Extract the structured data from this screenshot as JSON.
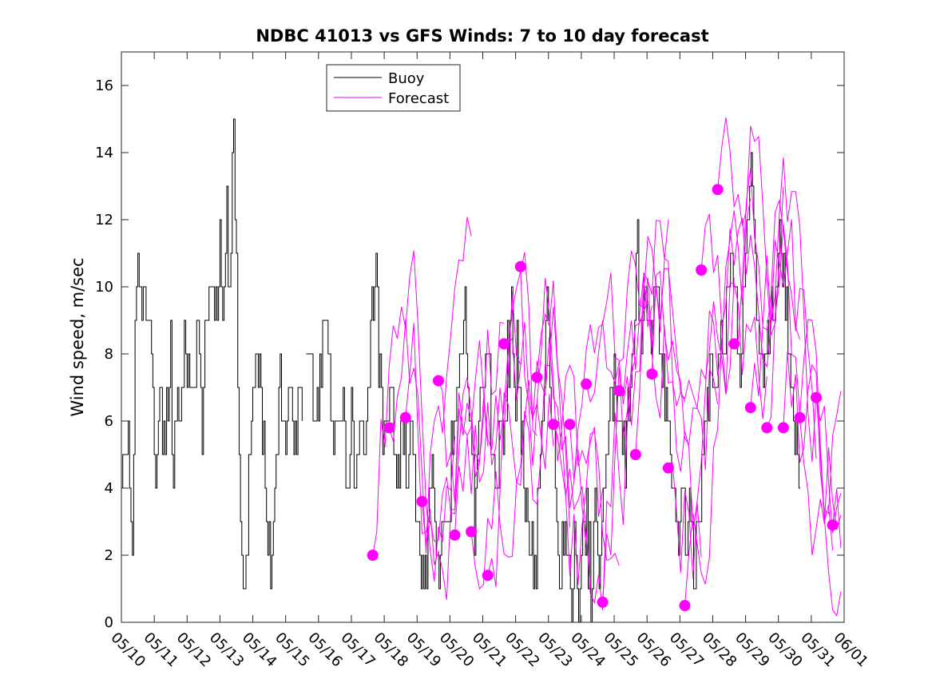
{
  "chart_data": {
    "type": "line",
    "title": "NDBC 41013 vs GFS Winds: 7 to 10 day forecast",
    "xlabel": "",
    "ylabel": "Wind speed, m/sec",
    "xlim_days": [
      0,
      22
    ],
    "ylim": [
      0,
      17
    ],
    "xticklabels": [
      "05/10",
      "05/11",
      "05/12",
      "05/13",
      "05/14",
      "05/15",
      "05/16",
      "05/17",
      "05/18",
      "05/19",
      "05/20",
      "05/21",
      "05/22",
      "05/23",
      "05/24",
      "05/25",
      "05/26",
      "05/27",
      "05/28",
      "05/29",
      "05/30",
      "05/31",
      "06/01"
    ],
    "yticks": [
      0,
      2,
      4,
      6,
      8,
      10,
      12,
      14,
      16
    ],
    "legend": {
      "placement": "top-left",
      "entries": [
        "Buoy",
        "Forecast"
      ]
    },
    "colors": {
      "buoy": "#000000",
      "forecast": "#ff00ff"
    },
    "buoy_anchors": [
      [
        0.0,
        4
      ],
      [
        0.1,
        5
      ],
      [
        0.2,
        5
      ],
      [
        0.3,
        3
      ],
      [
        0.35,
        2
      ],
      [
        0.45,
        11
      ],
      [
        0.55,
        10
      ],
      [
        0.7,
        10
      ],
      [
        0.85,
        9
      ],
      [
        0.95,
        7
      ],
      [
        1.05,
        5
      ],
      [
        1.2,
        7
      ],
      [
        1.35,
        5
      ],
      [
        1.5,
        8
      ],
      [
        1.55,
        3
      ],
      [
        1.65,
        7
      ],
      [
        1.8,
        6
      ],
      [
        1.95,
        9
      ],
      [
        2.05,
        7
      ],
      [
        2.25,
        7
      ],
      [
        2.35,
        9
      ],
      [
        2.45,
        6
      ],
      [
        2.6,
        9
      ],
      [
        2.75,
        10
      ],
      [
        2.9,
        9
      ],
      [
        3.0,
        11
      ],
      [
        3.1,
        9
      ],
      [
        3.2,
        12
      ],
      [
        3.3,
        10
      ],
      [
        3.4,
        14
      ],
      [
        3.5,
        11
      ],
      [
        3.6,
        4
      ],
      [
        3.7,
        1
      ],
      [
        3.8,
        2
      ],
      [
        3.9,
        5
      ],
      [
        4.0,
        7
      ],
      [
        4.1,
        8
      ],
      [
        4.2,
        7
      ],
      [
        4.3,
        5
      ],
      [
        4.45,
        3
      ],
      [
        4.55,
        1
      ],
      [
        4.65,
        4
      ],
      [
        4.8,
        7
      ],
      [
        4.95,
        6
      ],
      [
        5.1,
        7
      ],
      [
        5.25,
        6
      ],
      [
        5.45,
        7
      ],
      [
        5.6,
        8
      ],
      [
        5.75,
        7
      ],
      [
        5.9,
        6
      ],
      [
        6.05,
        8
      ],
      [
        6.2,
        9
      ],
      [
        6.35,
        8
      ],
      [
        6.45,
        5
      ],
      [
        6.6,
        6
      ],
      [
        6.75,
        7
      ],
      [
        6.85,
        4
      ],
      [
        7.0,
        6
      ],
      [
        7.1,
        4
      ],
      [
        7.25,
        6
      ],
      [
        7.4,
        5
      ],
      [
        7.55,
        7
      ],
      [
        7.65,
        9
      ],
      [
        7.75,
        11
      ],
      [
        7.85,
        8
      ],
      [
        7.95,
        6
      ],
      [
        8.1,
        6
      ],
      [
        8.25,
        7
      ],
      [
        8.4,
        5
      ],
      [
        8.55,
        6
      ],
      [
        8.7,
        4
      ],
      [
        8.85,
        6
      ],
      [
        8.95,
        4
      ],
      [
        9.05,
        3
      ],
      [
        9.15,
        1
      ],
      [
        9.3,
        2
      ],
      [
        9.45,
        5
      ],
      [
        9.55,
        3
      ],
      [
        9.65,
        1
      ],
      [
        9.75,
        3
      ],
      [
        9.85,
        4
      ],
      [
        9.95,
        3
      ],
      [
        10.05,
        5
      ],
      [
        10.15,
        6
      ],
      [
        10.3,
        8
      ],
      [
        10.45,
        9
      ],
      [
        10.55,
        7
      ],
      [
        10.65,
        5
      ],
      [
        10.75,
        3
      ],
      [
        10.85,
        6
      ],
      [
        11.0,
        7
      ],
      [
        11.15,
        8
      ],
      [
        11.3,
        5
      ],
      [
        11.4,
        4
      ],
      [
        11.55,
        6
      ],
      [
        11.7,
        7
      ],
      [
        11.85,
        9
      ],
      [
        11.95,
        7
      ],
      [
        12.05,
        8
      ],
      [
        12.15,
        6
      ],
      [
        12.3,
        4
      ],
      [
        12.4,
        3
      ],
      [
        12.55,
        1
      ],
      [
        12.65,
        3
      ],
      [
        12.75,
        5
      ],
      [
        12.9,
        8
      ],
      [
        12.95,
        10
      ],
      [
        13.05,
        7
      ],
      [
        13.15,
        5
      ],
      [
        13.25,
        3
      ],
      [
        13.35,
        1
      ],
      [
        13.45,
        3
      ],
      [
        13.6,
        2
      ],
      [
        13.7,
        0
      ],
      [
        13.8,
        3
      ],
      [
        13.9,
        0
      ],
      [
        14.0,
        2
      ],
      [
        14.15,
        3
      ],
      [
        14.3,
        1
      ],
      [
        14.45,
        3
      ],
      [
        14.55,
        2
      ],
      [
        14.7,
        4
      ],
      [
        14.85,
        6
      ],
      [
        15.0,
        7
      ],
      [
        15.15,
        6
      ],
      [
        15.3,
        5
      ],
      [
        15.45,
        7
      ],
      [
        15.6,
        8
      ],
      [
        15.7,
        11
      ],
      [
        15.85,
        9
      ],
      [
        15.95,
        10
      ],
      [
        16.1,
        8
      ],
      [
        16.25,
        10
      ],
      [
        16.4,
        8
      ],
      [
        16.55,
        7
      ],
      [
        16.65,
        6
      ],
      [
        16.8,
        3
      ],
      [
        16.95,
        2
      ],
      [
        17.05,
        4
      ],
      [
        17.15,
        2
      ],
      [
        17.3,
        3
      ],
      [
        17.45,
        2
      ],
      [
        17.55,
        3
      ],
      [
        17.7,
        5
      ],
      [
        17.85,
        7
      ],
      [
        17.95,
        8
      ],
      [
        18.1,
        7
      ],
      [
        18.2,
        9
      ],
      [
        18.35,
        8
      ],
      [
        18.45,
        10
      ],
      [
        18.55,
        11
      ],
      [
        18.7,
        9
      ],
      [
        18.85,
        7
      ],
      [
        18.95,
        10
      ],
      [
        19.05,
        12
      ],
      [
        19.15,
        14
      ],
      [
        19.25,
        12
      ],
      [
        19.35,
        9
      ],
      [
        19.5,
        7
      ],
      [
        19.65,
        8
      ],
      [
        19.8,
        9
      ],
      [
        19.95,
        10
      ],
      [
        20.05,
        11
      ],
      [
        20.15,
        10
      ],
      [
        20.25,
        9
      ],
      [
        20.35,
        7
      ],
      [
        20.5,
        6
      ],
      [
        20.6,
        5
      ],
      [
        20.7,
        3
      ]
    ],
    "forecast_points": [
      [
        7.65,
        2.0
      ],
      [
        8.15,
        5.8
      ],
      [
        8.65,
        6.1
      ],
      [
        9.15,
        3.6
      ],
      [
        9.65,
        7.2
      ],
      [
        10.15,
        2.6
      ],
      [
        10.65,
        2.7
      ],
      [
        11.15,
        1.4
      ],
      [
        11.65,
        8.3
      ],
      [
        12.15,
        10.6
      ],
      [
        12.65,
        7.3
      ],
      [
        13.15,
        5.9
      ],
      [
        13.65,
        5.9
      ],
      [
        14.15,
        7.1
      ],
      [
        14.65,
        0.6
      ],
      [
        15.15,
        6.9
      ],
      [
        15.65,
        5.0
      ],
      [
        16.15,
        7.4
      ],
      [
        16.65,
        4.6
      ],
      [
        17.15,
        0.5
      ],
      [
        17.65,
        10.5
      ],
      [
        18.15,
        12.9
      ],
      [
        18.65,
        8.3
      ],
      [
        19.15,
        6.4
      ],
      [
        19.65,
        5.8
      ],
      [
        20.15,
        5.8
      ],
      [
        20.65,
        6.1
      ],
      [
        21.15,
        6.7
      ],
      [
        21.65,
        2.9
      ]
    ]
  }
}
